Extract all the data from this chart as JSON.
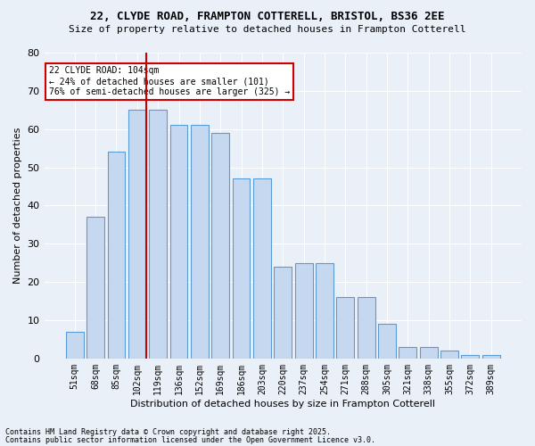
{
  "title1": "22, CLYDE ROAD, FRAMPTON COTTERELL, BRISTOL, BS36 2EE",
  "title2": "Size of property relative to detached houses in Frampton Cotterell",
  "xlabel": "Distribution of detached houses by size in Frampton Cotterell",
  "ylabel": "Number of detached properties",
  "categories": [
    "51sqm",
    "68sqm",
    "85sqm",
    "102sqm",
    "119sqm",
    "136sqm",
    "152sqm",
    "169sqm",
    "186sqm",
    "203sqm",
    "220sqm",
    "237sqm",
    "254sqm",
    "271sqm",
    "288sqm",
    "305sqm",
    "321sqm",
    "338sqm",
    "355sqm",
    "372sqm",
    "389sqm"
  ],
  "values": [
    7,
    37,
    54,
    65,
    65,
    61,
    61,
    59,
    47,
    47,
    24,
    25,
    25,
    16,
    16,
    9,
    3,
    3,
    2,
    1,
    1
  ],
  "bar_color": "#c5d8f0",
  "bar_edge_color": "#5b9bd5",
  "vline_color": "#cc0000",
  "annotation_text": "22 CLYDE ROAD: 104sqm\n← 24% of detached houses are smaller (101)\n76% of semi-detached houses are larger (325) →",
  "annotation_box_color": "#ffffff",
  "annotation_box_edge": "#cc0000",
  "footer1": "Contains HM Land Registry data © Crown copyright and database right 2025.",
  "footer2": "Contains public sector information licensed under the Open Government Licence v3.0.",
  "bg_color": "#eaf0f8",
  "ylim": [
    0,
    80
  ],
  "yticks": [
    0,
    10,
    20,
    30,
    40,
    50,
    60,
    70,
    80
  ]
}
